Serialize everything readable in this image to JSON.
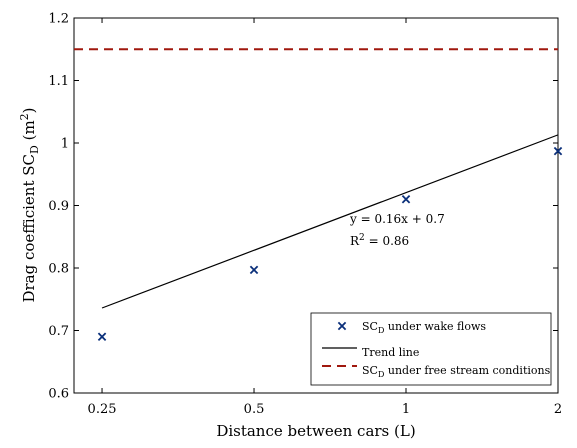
{
  "chart_data": {
    "type": "scatter",
    "xlabel": "Distance between cars (L)",
    "ylabel": {
      "base": "Drag coefficient SC",
      "sub": "D",
      "unit_pre": " (m",
      "unit_sup": "2",
      "unit_post": ")"
    },
    "xlim": [
      0.22,
      2.0
    ],
    "ylim": [
      0.6,
      1.2
    ],
    "xticks": [
      0.25,
      0.5,
      1,
      2
    ],
    "xtick_labels": [
      "0.25",
      "0.5",
      "1",
      "2"
    ],
    "yticks": [
      0.6,
      0.7,
      0.8,
      0.9,
      1.0,
      1.1,
      1.2
    ],
    "ytick_labels": [
      "0.6",
      "0.7",
      "0.8",
      "0.9",
      "1",
      "1.1",
      "1.2"
    ],
    "x_scale": "log",
    "grid": false,
    "legend_position": "bottom-right",
    "series": [
      {
        "name": "SC_D under wake flows",
        "legend": {
          "pre": "SC",
          "sub": "D",
          "post": " under wake flows"
        },
        "kind": "marker-x",
        "color": "#0a2f7a",
        "x": [
          0.25,
          0.5,
          1,
          2
        ],
        "y": [
          0.69,
          0.797,
          0.91,
          0.987
        ]
      },
      {
        "name": "Trend line",
        "legend": {
          "pre": "Trend line",
          "sub": "",
          "post": ""
        },
        "kind": "line",
        "color": "#000000",
        "x": [
          0.25,
          2.0
        ],
        "y": [
          0.736,
          1.013
        ]
      },
      {
        "name": "SC_D under free stream conditions",
        "legend": {
          "pre": "SC",
          "sub": "D",
          "post": " under free stream conditions"
        },
        "kind": "dashed",
        "color": "#a0180e",
        "x": [
          0.22,
          2.0
        ],
        "y": [
          1.15,
          1.15
        ]
      }
    ],
    "annotations": {
      "equation": "y = 0.16x + 0.7",
      "r2_base": "R",
      "r2_sup": "2",
      "r2_value": " = 0.86"
    }
  }
}
